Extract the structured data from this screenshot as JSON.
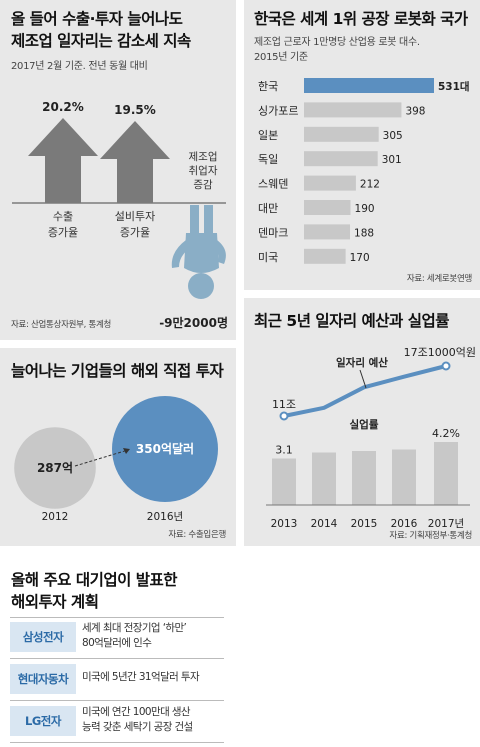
{
  "charts": [
    {
      "title_lines": [
        "올 들어 수출·투자 늘어나도",
        "제조업 일자리는 감소세 지속"
      ],
      "subtitle": "2017년 2월 기준. 전년 동월 대비",
      "source": "자료: 산업통상자원부, 통계청",
      "chart_data": {
        "type": "bar",
        "categories": [
          "수출 증가율",
          "설비투자 증가율",
          "제조업 취업자 증감"
        ],
        "category_lines": [
          [
            "수출",
            "증가율"
          ],
          [
            "설비투자",
            "증가율"
          ],
          [
            "제조업",
            "취업자",
            "증감"
          ]
        ],
        "values": [
          20.2,
          19.5,
          -92000
        ],
        "value_labels": [
          "20.2%",
          "19.5%",
          "-9만2000명"
        ],
        "colors": {
          "arrow": "#7a7a7a",
          "person": "#8aaec6"
        }
      }
    },
    {
      "title": "한국은 세계 1위 공장 로봇화 국가",
      "subtitle_lines": [
        "제조업 근로자 1만명당 산업용 로봇 대수.",
        "2015년 기준"
      ],
      "source": "자료: 세계로봇연맹",
      "chart_data": {
        "type": "bar",
        "orientation": "horizontal",
        "categories": [
          "한국",
          "싱가포르",
          "일본",
          "독일",
          "스웨덴",
          "대만",
          "덴마크",
          "미국"
        ],
        "values": [
          531,
          398,
          305,
          301,
          212,
          190,
          188,
          170
        ],
        "value_labels": [
          "531대",
          "398",
          "305",
          "301",
          "212",
          "190",
          "188",
          "170"
        ],
        "xlim": [
          0,
          531
        ],
        "colors": {
          "highlight": "#5b8fc0",
          "bar": "#c8c8c8"
        }
      }
    },
    {
      "title": "최근 5년 일자리 예산과 실업률",
      "source": "자료: 기획재정부·통계청",
      "chart_data": {
        "type": "bar",
        "categories": [
          "2013",
          "2014",
          "2015",
          "2016",
          "2017년"
        ],
        "series": [
          {
            "name": "실업률",
            "type": "bar",
            "values": [
              3.1,
              3.5,
              3.6,
              3.7,
              4.2
            ],
            "labels": [
              "3.1",
              "",
              "",
              "",
              "4.2%"
            ]
          },
          {
            "name": "일자리 예산",
            "type": "line",
            "values": [
              11,
              12,
              14.5,
              15.8,
              17.1
            ],
            "labels": [
              "11조",
              "",
              "",
              "",
              "17조1000억원"
            ]
          }
        ],
        "bar_ylim": [
          0,
          5
        ],
        "line_ylim": [
          5,
          18
        ],
        "colors": {
          "bar": "#c8c8c8",
          "line": "#5b8fc0"
        }
      }
    },
    {
      "title": "늘어나는 기업들의 해외 직접 투자",
      "source": "자료: 수출입은행",
      "chart_data": {
        "type": "bubble",
        "categories": [
          "2012",
          "2016년"
        ],
        "values": [
          287,
          350
        ],
        "value_labels": [
          "287억",
          "350억달러"
        ],
        "colors": {
          "small": "#c8c8c8",
          "large": "#5b8fc0"
        }
      }
    },
    {
      "title_lines": [
        "올해 주요 대기업이 발표한",
        "해외투자 계획"
      ],
      "chart_data": {
        "type": "table",
        "rows": [
          {
            "company": "삼성전자",
            "plan_lines": [
              "세계 최대 전장기업 ‘하만’",
              "80억달러에 인수"
            ]
          },
          {
            "company": "현대자동차",
            "plan_lines": [
              "미국에 5년간 31억달러 투자"
            ]
          },
          {
            "company": "LG전자",
            "plan_lines": [
              "미국에 연간 100만대 생산",
              "능력 갖춘 세탁기 공장 건설"
            ]
          }
        ]
      }
    }
  ]
}
